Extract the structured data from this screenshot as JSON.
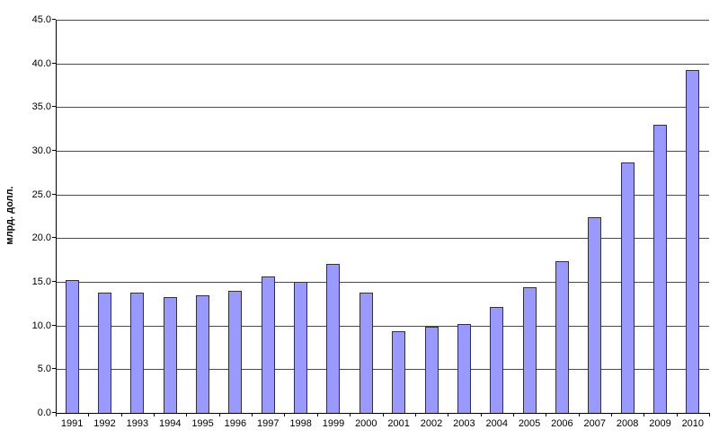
{
  "chart_data": {
    "type": "bar",
    "title": "",
    "xlabel": "",
    "ylabel": "млрд. долл.",
    "categories": [
      "1991",
      "1992",
      "1993",
      "1994",
      "1995",
      "1996",
      "1997",
      "1998",
      "1999",
      "2000",
      "2001",
      "2002",
      "2003",
      "2004",
      "2005",
      "2006",
      "2007",
      "2008",
      "2009",
      "2010"
    ],
    "values": [
      15.2,
      13.8,
      13.8,
      13.3,
      13.5,
      14.0,
      15.6,
      15.0,
      17.1,
      13.8,
      9.3,
      9.9,
      10.2,
      12.1,
      14.4,
      17.4,
      22.4,
      28.7,
      33.0,
      39.2
    ],
    "ylim": [
      0,
      45
    ],
    "yticks": [
      0,
      5,
      10,
      15,
      20,
      25,
      30,
      35,
      40,
      45
    ],
    "ytick_labels": [
      "0.0",
      "5.0",
      "10.0",
      "15.0",
      "20.0",
      "25.0",
      "30.0",
      "35.0",
      "40.0",
      "45.0"
    ],
    "grid": true,
    "legend": "none",
    "bar_color": "#9999ff",
    "bar_border_color": "#333333",
    "gridline_color": "#4a4a4a",
    "axis_color": "#000000",
    "background_color": "#ffffff"
  }
}
